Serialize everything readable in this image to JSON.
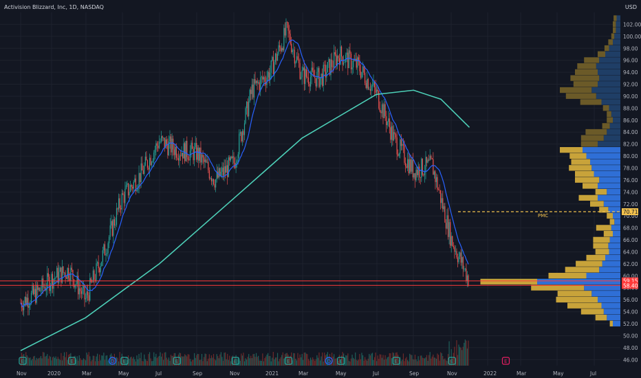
{
  "title": "Activision Blizzard, Inc, 1D, NASDAQ",
  "currency": "USD",
  "colors": {
    "background": "#131722",
    "grid": "#1e222d",
    "text": "#b2b5be",
    "candle_up": "#26a69a",
    "candle_down": "#ef5350",
    "ma_fast": "#2962ff",
    "ma_slow": "#4dd0b8",
    "vp_value_area_up": "#2f6fd6",
    "vp_value_area_down": "#c8a33a",
    "vp_outside_up": "#1f3e66",
    "vp_outside_down": "#6b5a28",
    "poc_line": "#f2c14e",
    "support_line": "#ff3b3b",
    "earnings_badge": "#26a69a",
    "dividend_badge": "#2962ff",
    "upcoming_earnings_badge": "#e91e63"
  },
  "chart_data": {
    "type": "candlestick",
    "x_ticks": [
      "Nov",
      "2020",
      "Mar",
      "May",
      "Jul",
      "Sep",
      "Nov",
      "2021",
      "Mar",
      "May",
      "Jul",
      "Sep",
      "Nov",
      "2022",
      "Mar",
      "May",
      "Jul"
    ],
    "y_ticks": [
      46,
      48,
      50,
      52,
      54,
      56,
      58,
      60,
      62,
      64,
      66,
      68,
      70,
      72,
      74,
      76,
      78,
      80,
      82,
      84,
      86,
      88,
      90,
      92,
      94,
      96,
      98,
      100,
      102
    ],
    "ylim": [
      45,
      104
    ],
    "price_path": [
      {
        "date": "2019-11-01",
        "close": 55.5
      },
      {
        "date": "2019-12-01",
        "close": 57.0
      },
      {
        "date": "2020-01-01",
        "close": 59.5
      },
      {
        "date": "2020-02-01",
        "close": 61.0
      },
      {
        "date": "2020-03-01",
        "close": 56.0
      },
      {
        "date": "2020-04-01",
        "close": 64.0
      },
      {
        "date": "2020-05-01",
        "close": 73.0
      },
      {
        "date": "2020-06-01",
        "close": 77.0
      },
      {
        "date": "2020-07-01",
        "close": 82.5
      },
      {
        "date": "2020-08-01",
        "close": 81.0
      },
      {
        "date": "2020-09-01",
        "close": 80.5
      },
      {
        "date": "2020-10-01",
        "close": 76.0
      },
      {
        "date": "2020-11-01",
        "close": 79.0
      },
      {
        "date": "2020-12-01",
        "close": 91.0
      },
      {
        "date": "2021-01-01",
        "close": 94.0
      },
      {
        "date": "2021-02-01",
        "close": 101.0
      },
      {
        "date": "2021-03-01",
        "close": 93.5
      },
      {
        "date": "2021-04-01",
        "close": 93.0
      },
      {
        "date": "2021-05-01",
        "close": 97.0
      },
      {
        "date": "2021-06-01",
        "close": 95.0
      },
      {
        "date": "2021-07-01",
        "close": 90.5
      },
      {
        "date": "2021-08-01",
        "close": 82.5
      },
      {
        "date": "2021-09-01",
        "close": 77.5
      },
      {
        "date": "2021-10-01",
        "close": 78.5
      },
      {
        "date": "2021-11-01",
        "close": 66.0
      },
      {
        "date": "2021-12-01",
        "close": 59.2
      }
    ],
    "ma_200_path": [
      {
        "date": "2019-11-01",
        "value": 47.5
      },
      {
        "date": "2020-03-01",
        "value": 53.0
      },
      {
        "date": "2020-07-01",
        "value": 62.0
      },
      {
        "date": "2020-11-01",
        "value": 73.0
      },
      {
        "date": "2021-03-01",
        "value": 83.0
      },
      {
        "date": "2021-07-01",
        "value": 90.3
      },
      {
        "date": "2021-09-01",
        "value": 91.0
      },
      {
        "date": "2021-10-15",
        "value": 89.5
      },
      {
        "date": "2021-12-01",
        "value": 84.8
      }
    ],
    "volume_profile": [
      {
        "price": 52,
        "up": 10,
        "down": 4
      },
      {
        "price": 53,
        "up": 18,
        "down": 15
      },
      {
        "price": 54,
        "up": 22,
        "down": 30
      },
      {
        "price": 55,
        "up": 25,
        "down": 45
      },
      {
        "price": 56,
        "up": 30,
        "down": 55
      },
      {
        "price": 57,
        "up": 38,
        "down": 45
      },
      {
        "price": 58,
        "up": 48,
        "down": 70
      },
      {
        "price": 59,
        "up": 110,
        "down": 75
      },
      {
        "price": 60,
        "up": 45,
        "down": 50
      },
      {
        "price": 61,
        "up": 28,
        "down": 45
      },
      {
        "price": 62,
        "up": 24,
        "down": 35
      },
      {
        "price": 63,
        "up": 20,
        "down": 25
      },
      {
        "price": 64,
        "up": 15,
        "down": 18
      },
      {
        "price": 65,
        "up": 16,
        "down": 20
      },
      {
        "price": 66,
        "up": 14,
        "down": 22
      },
      {
        "price": 67,
        "up": 10,
        "down": 12
      },
      {
        "price": 68,
        "up": 12,
        "down": 20
      },
      {
        "price": 69,
        "up": 8,
        "down": 6
      },
      {
        "price": 70,
        "up": 10,
        "down": 8
      },
      {
        "price": 71,
        "up": 16,
        "down": 12
      },
      {
        "price": 72,
        "up": 22,
        "down": 18
      },
      {
        "price": 73,
        "up": 30,
        "down": 25
      },
      {
        "price": 74,
        "up": 18,
        "down": 15
      },
      {
        "price": 75,
        "up": 30,
        "down": 20
      },
      {
        "price": 76,
        "up": 28,
        "down": 32
      },
      {
        "price": 77,
        "up": 35,
        "down": 25
      },
      {
        "price": 78,
        "up": 38,
        "down": 30
      },
      {
        "price": 79,
        "up": 40,
        "down": 25
      },
      {
        "price": 80,
        "up": 45,
        "down": 22
      },
      {
        "price": 81,
        "up": 50,
        "down": 30
      },
      {
        "price": 82,
        "up": 30,
        "down": 22
      },
      {
        "price": 83,
        "up": 22,
        "down": 30
      },
      {
        "price": 84,
        "up": 18,
        "down": 28
      },
      {
        "price": 85,
        "up": 14,
        "down": 10
      },
      {
        "price": 86,
        "up": 10,
        "down": 8
      },
      {
        "price": 87,
        "up": 12,
        "down": 6
      },
      {
        "price": 88,
        "up": 15,
        "down": 8
      },
      {
        "price": 89,
        "up": 25,
        "down": 28
      },
      {
        "price": 90,
        "up": 32,
        "down": 40
      },
      {
        "price": 91,
        "up": 38,
        "down": 42
      },
      {
        "price": 92,
        "up": 30,
        "down": 32
      },
      {
        "price": 93,
        "up": 28,
        "down": 38
      },
      {
        "price": 94,
        "up": 30,
        "down": 30
      },
      {
        "price": 95,
        "up": 32,
        "down": 25
      },
      {
        "price": 96,
        "up": 28,
        "down": 20
      },
      {
        "price": 97,
        "up": 20,
        "down": 10
      },
      {
        "price": 98,
        "up": 15,
        "down": 6
      },
      {
        "price": 99,
        "up": 10,
        "down": 6
      },
      {
        "price": 100,
        "up": 8,
        "down": 4
      },
      {
        "price": 101,
        "up": 6,
        "down": 4
      },
      {
        "price": 102,
        "up": 6,
        "down": 4
      },
      {
        "price": 103,
        "up": 5,
        "down": 4
      }
    ],
    "value_area": [
      52,
      81.3
    ],
    "poc": {
      "label": "PMC",
      "price": 70.71,
      "price_label": "70.71"
    },
    "horizontal_lines": [
      {
        "price": 59.15,
        "label": "59.15"
      },
      {
        "price": 58.4,
        "label": "58.40"
      }
    ],
    "event_badges": [
      {
        "type": "earnings",
        "label": "E",
        "date": "2019-11-05"
      },
      {
        "type": "earnings",
        "label": "E",
        "date": "2020-02-06"
      },
      {
        "type": "dividend",
        "label": "D",
        "date": "2020-04-15"
      },
      {
        "type": "earnings",
        "label": "E",
        "date": "2020-05-05"
      },
      {
        "type": "earnings",
        "label": "E",
        "date": "2020-07-30"
      },
      {
        "type": "earnings",
        "label": "E",
        "date": "2020-11-03"
      },
      {
        "type": "earnings",
        "label": "E",
        "date": "2021-02-04"
      },
      {
        "type": "earnings",
        "label": "E",
        "date": "2021-05-04"
      },
      {
        "type": "dividend",
        "label": "D",
        "date": "2021-04-14"
      },
      {
        "type": "earnings",
        "label": "E",
        "date": "2021-08-03"
      },
      {
        "type": "earnings",
        "label": "E",
        "date": "2021-11-02"
      },
      {
        "type": "upcoming_earnings",
        "label": "E",
        "date": "2022-02-03"
      }
    ]
  }
}
